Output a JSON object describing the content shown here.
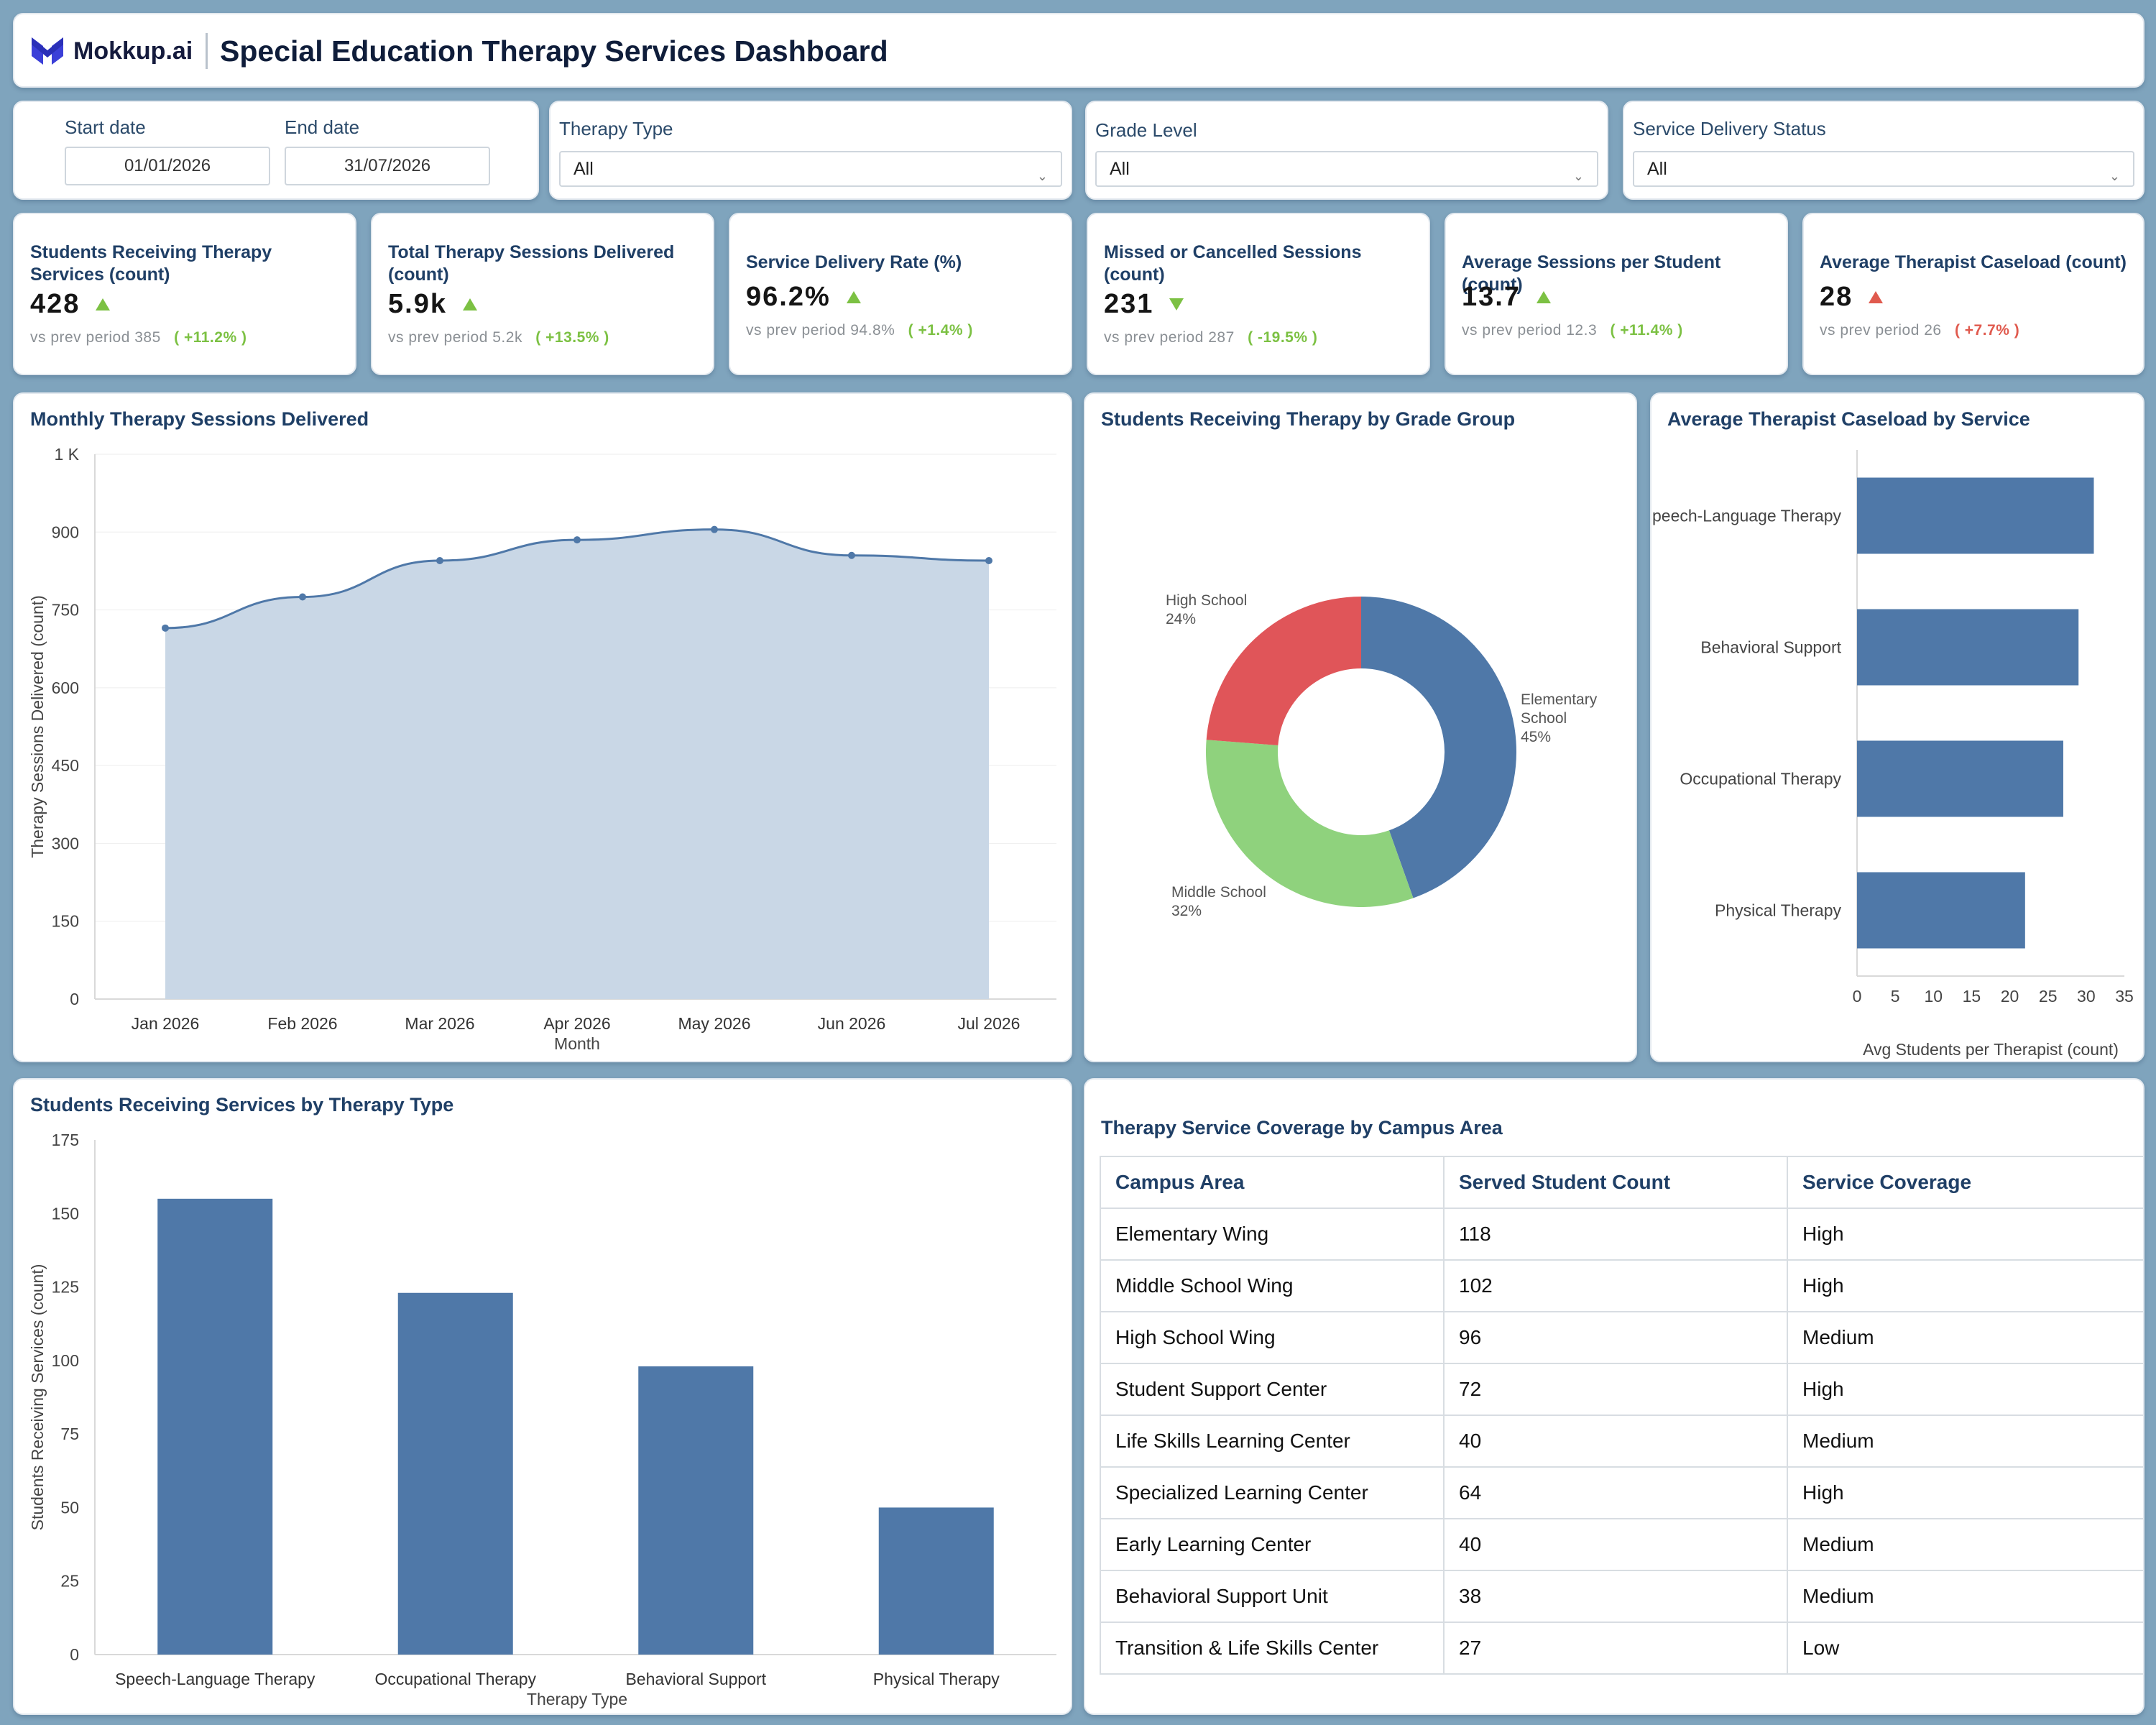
{
  "header": {
    "brand": "Mokkup.ai",
    "title": "Special Education Therapy Services Dashboard"
  },
  "filters": {
    "start_label": "Start date",
    "start_value": "01/01/2026",
    "end_label": "End date",
    "end_value": "31/07/2026",
    "therapy_type": {
      "label": "Therapy Type",
      "value": "All"
    },
    "grade_level": {
      "label": "Grade Level",
      "value": "All"
    },
    "delivery_status": {
      "label": "Service Delivery Status",
      "value": "All"
    }
  },
  "kpis": [
    {
      "title": "Students Receiving Therapy Services (count)",
      "value": "428",
      "prev_label": "vs prev period",
      "prev": "385",
      "change": "( +11.2% )",
      "trend": "up",
      "change_color": "#7cc143"
    },
    {
      "title": "Total Therapy Sessions Delivered (count)",
      "value": "5.9k",
      "prev_label": "vs prev period",
      "prev": "5.2k",
      "change": "( +13.5% )",
      "trend": "up",
      "change_color": "#7cc143"
    },
    {
      "title": "Service Delivery Rate (%)",
      "value": "96.2%",
      "prev_label": "vs prev period",
      "prev": "94.8%",
      "change": "( +1.4% )",
      "trend": "up",
      "change_color": "#7cc143"
    },
    {
      "title": "Missed or Cancelled Sessions (count)",
      "value": "231",
      "prev_label": "vs prev period",
      "prev": "287",
      "change": "( -19.5% )",
      "trend": "down",
      "change_color": "#7cc143"
    },
    {
      "title": "Average Sessions per Student (count)",
      "value": "13.7",
      "prev_label": "vs prev period",
      "prev": "12.3",
      "change": "( +11.4% )",
      "trend": "up",
      "change_color": "#7cc143"
    },
    {
      "title": "Average Therapist Caseload (count)",
      "value": "28",
      "prev_label": "vs prev period",
      "prev": "26",
      "change": "( +7.7% )",
      "trend": "up-red",
      "change_color": "#e05a4e"
    }
  ],
  "chart_data": [
    {
      "type": "area",
      "title": "Monthly Therapy Sessions Delivered",
      "xlabel": "Month",
      "ylabel": "Therapy Sessions Delivered (count)",
      "categories": [
        "Jan 2026",
        "Feb 2026",
        "Mar 2026",
        "Apr 2026",
        "May 2026",
        "Jun 2026",
        "Jul 2026"
      ],
      "values": [
        715,
        775,
        845,
        885,
        905,
        855,
        845
      ],
      "ylim": [
        0,
        1050
      ],
      "yticks": [
        "0",
        "150",
        "300",
        "450",
        "600",
        "750",
        "900",
        "1 K"
      ],
      "ytick_values": [
        0,
        150,
        300,
        450,
        600,
        750,
        900,
        1050
      ],
      "fill": "#c9d7e6",
      "line": "#4f78a8"
    },
    {
      "type": "pie",
      "title": "Students Receiving Therapy by Grade Group",
      "slices": [
        {
          "label": "Elementary School",
          "label_lines": [
            "Elementary",
            "School"
          ],
          "pct": "45%",
          "value": 45,
          "color": "#4f78a8"
        },
        {
          "label": "Middle School",
          "label_lines": [
            "Middle School"
          ],
          "pct": "32%",
          "value": 32,
          "color": "#8fd27d"
        },
        {
          "label": "High School",
          "label_lines": [
            "High School"
          ],
          "pct": "24%",
          "value": 24,
          "color": "#e05559"
        }
      ]
    },
    {
      "type": "bar",
      "orientation": "horizontal",
      "title": "Average Therapist Caseload by Service",
      "xlabel": "Avg Students per Therapist (count)",
      "categories": [
        "Speech-Language Therapy",
        "Behavioral Support",
        "Occupational Therapy",
        "Physical Therapy"
      ],
      "category_labels": [
        "peech-Language Therapy",
        "Behavioral Support",
        "Occupational Therapy",
        "Physical Therapy"
      ],
      "values": [
        31,
        29,
        27,
        22
      ],
      "xlim": [
        0,
        35
      ],
      "xticks": [
        "0",
        "5",
        "10",
        "15",
        "20",
        "25",
        "30",
        "35"
      ],
      "color": "#4f78a8"
    },
    {
      "type": "bar",
      "title": "Students Receiving Services by Therapy Type",
      "xlabel": "Therapy Type",
      "ylabel": "Students Receiving Services (count)",
      "categories": [
        "Speech-Language Therapy",
        "Occupational Therapy",
        "Behavioral Support",
        "Physical Therapy"
      ],
      "values": [
        155,
        123,
        98,
        50
      ],
      "ylim": [
        0,
        175
      ],
      "yticks": [
        "0",
        "25",
        "50",
        "75",
        "100",
        "125",
        "150",
        "175"
      ],
      "color": "#4f78a8"
    }
  ],
  "coverage": {
    "title": "Therapy Service Coverage by Campus Area",
    "columns": [
      "Campus Area",
      "Served Student Count",
      "Service Coverage"
    ],
    "rows": [
      [
        "Elementary Wing",
        "118",
        "High"
      ],
      [
        "Middle School Wing",
        "102",
        "High"
      ],
      [
        "High School Wing",
        "96",
        "Medium"
      ],
      [
        "Student Support Center",
        "72",
        "High"
      ],
      [
        "Life Skills Learning Center",
        "40",
        "Medium"
      ],
      [
        "Specialized Learning Center",
        "64",
        "High"
      ],
      [
        "Early Learning Center",
        "40",
        "Medium"
      ],
      [
        "Behavioral Support Unit",
        "38",
        "Medium"
      ],
      [
        "Transition & Life Skills Center",
        "27",
        "Low"
      ]
    ]
  }
}
